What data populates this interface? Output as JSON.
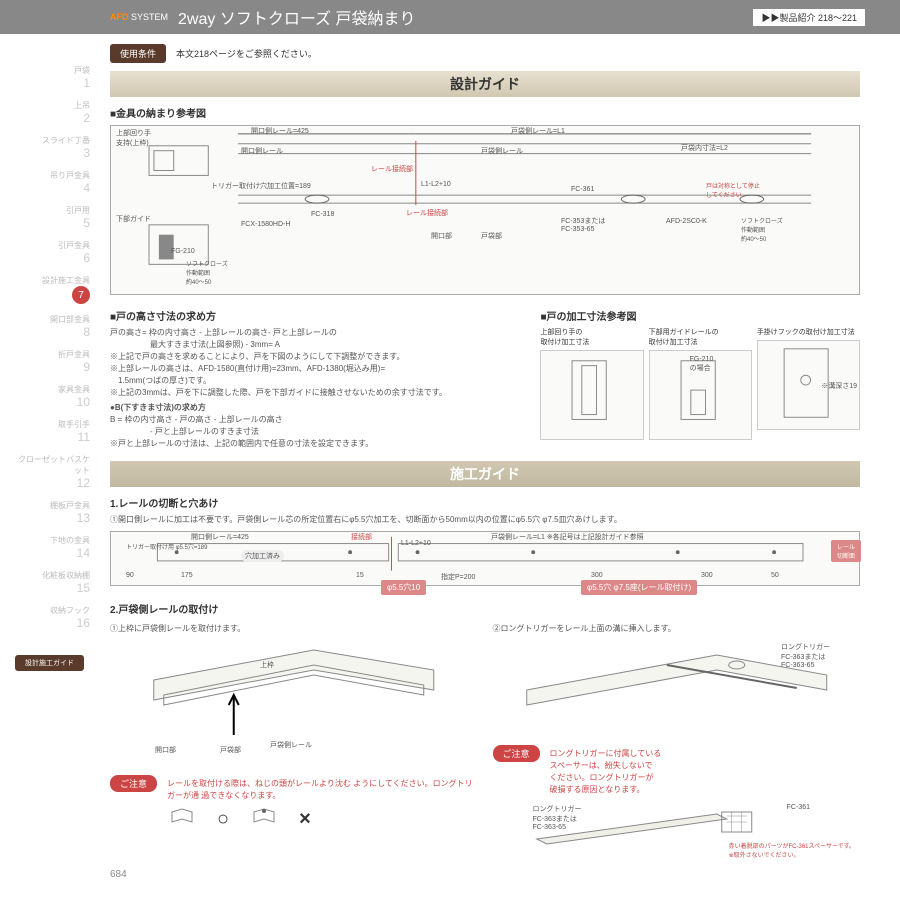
{
  "header": {
    "brand": "AFD",
    "sub": "SYSTEM",
    "title": "2way ソフトクローズ 戸袋納まり",
    "badge": "▶▶製品紹介 218～221"
  },
  "sidebar": {
    "items": [
      {
        "label": "戸袋",
        "num": "1"
      },
      {
        "label": "上吊",
        "num": "2"
      },
      {
        "label": "スライド丁番",
        "num": "3"
      },
      {
        "label": "吊り戸金具",
        "num": "4"
      },
      {
        "label": "引戸用",
        "num": "5"
      },
      {
        "label": "引戸金具",
        "num": "6"
      },
      {
        "label": "設計施工金具",
        "num": "7",
        "active": true
      },
      {
        "label": "開口部金具",
        "num": "8"
      },
      {
        "label": "折戸金具",
        "num": "9"
      },
      {
        "label": "家具金具",
        "num": "10"
      },
      {
        "label": "取手引手",
        "num": "11"
      },
      {
        "label": "クローゼットバスケット",
        "num": "12"
      },
      {
        "label": "棚板戸金具",
        "num": "13"
      },
      {
        "label": "下地の金具",
        "num": "14"
      },
      {
        "label": "化粧板収納棚",
        "num": "15"
      },
      {
        "label": "収納フック",
        "num": "16"
      }
    ],
    "bottom_label": "設計施工ガイド"
  },
  "usage": {
    "badge": "使用条件",
    "text": "本文218ページをご参照ください。"
  },
  "section1": {
    "title": "設計ガイド",
    "sub1": "■金具の納まり参考図",
    "labels": {
      "top": "上部回り手",
      "top_detail": "支持(上枠)",
      "rail1": "開口側レール=425",
      "rail2": "戸袋側レール=L1",
      "rail3": "戸袋内寸法=L2",
      "rail_open": "開口側レール",
      "rail_pocket": "戸袋側レール",
      "rail_joint": "レール接続部",
      "trigger": "トリガー取付け穴加工位置=189",
      "dim_l": "L1-L2+10",
      "fc361": "FC-361",
      "fc318": "FC-318",
      "fcx": "FCX-1580HD-H",
      "bottom": "下部ガイド",
      "fg": "FG-210",
      "softclose": "ソフトクローズ\n作動範囲\n約40～50",
      "fc353": "FC-353または\nFC-353-65",
      "afd": "AFD-2SC0-K",
      "note_right": "戸は対称として停止\nしてください",
      "opening": "開口部",
      "pocket": "戸袋部",
      "door_end": "戸先端"
    }
  },
  "door_calc": {
    "title": "■戸の高さ寸法の求め方",
    "line1": "戸の高さ= 枠の内寸高さ - 上部レールの高さ- 戸と上部レールの",
    "line2": "最大すきま寸法(上図参照) - 3mm= A",
    "note1": "※上記で戸の高さを求めることにより、戸を下図のようにして下調整ができます。",
    "note2": "※上部レールの高さは、AFD-1580(直付け用)=23mm、AFD-1380(堀込み用)=",
    "note3": "1.5mm(つばの厚さ)です。",
    "note4": "※上記の3mmは、戸を下に調整した際、戸を下部ガイドに接触させないための余す寸法です。",
    "sub2": "●B(下すきま寸法)の求め方",
    "line3": "B = 枠の内寸高さ - 戸の高さ - 上部レールの高さ",
    "line4": "- 戸と上部レールのすきま寸法",
    "note5": "※戸と上部レールの寸法は、上記の範囲内で任意の寸法を設定できます。"
  },
  "door_ref": {
    "title": "■戸の加工寸法参考図",
    "col1": "上部回り手の\n取付け加工寸法",
    "col2": "下部用ガイドレールの\n取付け加工寸法",
    "col3": "手掛けフックの取付け加工寸法",
    "fg210": "FG-210\nの場合",
    "depth": "※溝深さ19"
  },
  "section2": {
    "title": "施工ガイド",
    "sub1": "1.レールの切断と穴あけ",
    "text1": "①開口側レールに加工は不要です。戸袋側レール芯の所定位置右にφ5.5穴加工を、切断面から50mm以内の位置にφ5.5穴 φ7.5皿穴あけします。",
    "labels": {
      "rail1": "開口側レール=425",
      "trigger": "トリガー取付け用 φ5.5穴=189",
      "done": "穴加工済み",
      "joint": "接続部",
      "dim": "L1-L2+10",
      "rail2": "戸袋側レール=L1 ※各記号は上記設計ガイド参照",
      "cut": "レール\n切断面",
      "badge1": "φ5.5穴10",
      "badge2": "φ5.5穴 φ7.5座(レール取付け)",
      "d90": "90",
      "d175": "175",
      "d15": "15",
      "d200": "指定P=200",
      "d300": "300",
      "d50": "50"
    }
  },
  "install": {
    "sub": "2.戸袋側レールの取付け",
    "step1": "①上枠に戸袋側レールを取付けます。",
    "step2": "②ロングトリガーをレール上面の溝に挿入します。",
    "label_top": "上枠",
    "label_open": "開口部",
    "label_pocket": "戸袋部",
    "label_rail": "戸袋側レール",
    "long_trigger": "ロングトリガー\nFC-363または\nFC-363-65",
    "caution": "ご注意",
    "caution1": "ロングトリガーに付属している\nスペーサーは、紛失しないで\nください。ロングトリガーが\n破損する原因となります。",
    "fc361": "FC-361",
    "caution2": "赤い着脱部のパーツがFC-361スペーサーです。\n※取外さないでください。",
    "bottom_caution": "レールを取付ける際は、ねじの頭がレールより沈む\nようにしてください。ロングトリガーが通\n過できなくなります。"
  },
  "page_num": "684"
}
